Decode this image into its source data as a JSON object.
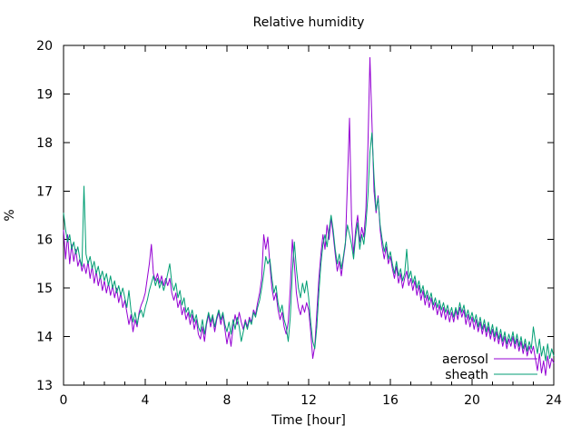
{
  "window": {
    "background": "#ffffff"
  },
  "colors": {
    "axis": "#000000",
    "text": "#000000",
    "aerosol": "#9400d3",
    "sheath": "#009e73"
  },
  "chart_data": {
    "type": "line",
    "title": "Relative humidity",
    "xlabel": "Time [hour]",
    "ylabel": "%",
    "xlim": [
      0,
      24
    ],
    "ylim": [
      13,
      20
    ],
    "x_major_ticks": [
      0,
      4,
      8,
      12,
      16,
      20,
      24
    ],
    "x_minor_ticks": [
      1,
      2,
      3,
      5,
      6,
      7,
      9,
      10,
      11,
      13,
      14,
      15,
      17,
      18,
      19,
      21,
      22,
      23
    ],
    "y_major_ticks": [
      13,
      14,
      15,
      16,
      17,
      18,
      19,
      20
    ],
    "grid": false,
    "legend_position": "bottom-right",
    "x_start": 0,
    "x_step": 0.1,
    "series": [
      {
        "name": "aerosol",
        "color": "#9400d3",
        "values": [
          16.2,
          15.6,
          16.1,
          15.5,
          15.9,
          15.55,
          15.8,
          15.45,
          15.6,
          15.35,
          15.5,
          15.3,
          15.55,
          15.2,
          15.45,
          15.1,
          15.35,
          15.05,
          15.25,
          14.95,
          15.15,
          14.9,
          15.1,
          14.85,
          15.05,
          14.8,
          15.0,
          14.7,
          14.9,
          14.6,
          14.75,
          14.5,
          14.25,
          14.45,
          14.1,
          14.35,
          14.2,
          14.5,
          14.65,
          14.75,
          14.9,
          15.2,
          15.5,
          15.9,
          15.3,
          15.15,
          15.3,
          15.1,
          15.25,
          15.05,
          15.2,
          15.05,
          15.2,
          14.9,
          14.75,
          14.9,
          14.6,
          14.75,
          14.45,
          14.6,
          14.35,
          14.5,
          14.25,
          14.45,
          14.15,
          14.35,
          14.05,
          13.95,
          14.2,
          13.9,
          14.25,
          14.45,
          14.2,
          14.4,
          14.1,
          14.35,
          14.5,
          14.25,
          14.45,
          14.15,
          13.85,
          14.1,
          13.8,
          14.2,
          14.45,
          14.25,
          14.5,
          14.3,
          14.15,
          14.35,
          14.2,
          14.4,
          14.3,
          14.55,
          14.45,
          14.7,
          14.9,
          15.2,
          16.1,
          15.8,
          16.05,
          15.5,
          15.0,
          14.75,
          14.9,
          14.55,
          14.35,
          14.5,
          14.2,
          14.05,
          14.3,
          15.0,
          16.0,
          15.5,
          14.9,
          14.6,
          14.45,
          14.65,
          14.5,
          14.7,
          14.55,
          14.1,
          13.55,
          13.8,
          14.5,
          15.2,
          15.7,
          16.1,
          15.8,
          16.3,
          16.0,
          16.45,
          16.1,
          15.7,
          15.35,
          15.55,
          15.25,
          15.6,
          15.9,
          17.2,
          18.5,
          16.4,
          15.7,
          16.2,
          16.5,
          15.95,
          16.25,
          16.05,
          16.6,
          17.9,
          19.75,
          18.4,
          17.0,
          16.55,
          16.9,
          16.2,
          15.85,
          15.6,
          15.85,
          15.5,
          15.65,
          15.4,
          15.2,
          15.45,
          15.1,
          15.3,
          15.0,
          15.2,
          15.35,
          15.05,
          15.2,
          14.95,
          15.15,
          14.85,
          15.05,
          14.75,
          14.95,
          14.65,
          14.85,
          14.6,
          14.8,
          14.55,
          14.7,
          14.45,
          14.65,
          14.4,
          14.6,
          14.35,
          14.55,
          14.3,
          14.5,
          14.3,
          14.55,
          14.35,
          14.6,
          14.4,
          14.55,
          14.25,
          14.45,
          14.2,
          14.4,
          14.15,
          14.35,
          14.1,
          14.3,
          14.05,
          14.25,
          14.0,
          14.2,
          13.95,
          14.15,
          13.9,
          14.1,
          13.85,
          14.05,
          13.8,
          14.0,
          13.75,
          13.95,
          13.8,
          14.0,
          13.75,
          13.95,
          13.7,
          13.9,
          13.65,
          13.85,
          13.6,
          13.8,
          13.65,
          13.8,
          13.55,
          13.3,
          13.65,
          13.25,
          13.5,
          13.2,
          13.6,
          13.35,
          13.55,
          13.45
        ]
      },
      {
        "name": "sheath",
        "color": "#009e73",
        "values": [
          16.55,
          16.2,
          15.95,
          16.1,
          15.8,
          15.95,
          15.7,
          15.85,
          15.6,
          15.45,
          17.1,
          15.7,
          15.5,
          15.65,
          15.4,
          15.55,
          15.3,
          15.45,
          15.2,
          15.35,
          15.15,
          15.3,
          15.05,
          15.25,
          15.0,
          15.15,
          14.9,
          15.05,
          14.85,
          15.0,
          14.8,
          14.6,
          14.95,
          14.55,
          14.3,
          14.5,
          14.25,
          14.45,
          14.55,
          14.4,
          14.6,
          14.75,
          14.95,
          15.1,
          15.25,
          15.05,
          15.2,
          15.0,
          15.15,
          14.95,
          15.1,
          15.3,
          15.5,
          15.1,
          14.95,
          15.1,
          14.8,
          14.95,
          14.65,
          14.8,
          14.5,
          14.6,
          14.4,
          14.55,
          14.3,
          14.45,
          14.2,
          14.1,
          14.35,
          14.05,
          14.3,
          14.5,
          14.3,
          14.45,
          14.2,
          14.4,
          14.55,
          14.35,
          14.5,
          14.25,
          14.1,
          14.3,
          14.05,
          14.35,
          14.15,
          14.4,
          14.2,
          13.9,
          14.1,
          14.3,
          14.15,
          14.35,
          14.25,
          14.5,
          14.4,
          14.6,
          14.75,
          15.0,
          15.3,
          15.65,
          15.5,
          15.6,
          15.2,
          14.9,
          15.05,
          14.7,
          14.5,
          14.65,
          14.35,
          14.2,
          13.9,
          14.4,
          15.3,
          15.95,
          15.4,
          15.0,
          14.8,
          15.1,
          14.9,
          15.15,
          14.8,
          14.3,
          13.9,
          13.75,
          14.2,
          14.9,
          15.5,
          15.9,
          16.1,
          15.85,
          16.2,
          16.5,
          16.2,
          15.8,
          15.5,
          15.7,
          15.4,
          15.65,
          15.95,
          16.3,
          16.1,
          15.9,
          15.6,
          16.05,
          16.35,
          15.8,
          16.1,
          15.9,
          16.3,
          16.9,
          17.8,
          18.2,
          17.3,
          16.6,
          16.85,
          16.3,
          16.0,
          15.75,
          15.95,
          15.6,
          15.75,
          15.5,
          15.3,
          15.55,
          15.25,
          15.4,
          15.15,
          15.3,
          15.8,
          15.2,
          15.35,
          15.1,
          15.25,
          15.0,
          15.15,
          14.9,
          15.05,
          14.8,
          14.95,
          14.75,
          14.9,
          14.65,
          14.8,
          14.6,
          14.75,
          14.55,
          14.7,
          14.5,
          14.65,
          14.45,
          14.6,
          14.4,
          14.6,
          14.45,
          14.7,
          14.5,
          14.65,
          14.4,
          14.55,
          14.35,
          14.5,
          14.3,
          14.45,
          14.2,
          14.4,
          14.15,
          14.35,
          14.1,
          14.3,
          14.05,
          14.25,
          14.0,
          14.2,
          13.95,
          14.15,
          13.9,
          14.1,
          13.85,
          14.05,
          13.9,
          14.1,
          13.85,
          14.05,
          13.8,
          14.0,
          13.75,
          13.95,
          13.7,
          13.9,
          13.75,
          14.2,
          13.9,
          13.65,
          13.95,
          13.6,
          13.8,
          13.5,
          13.85,
          13.55,
          13.75,
          13.6
        ]
      }
    ]
  },
  "legend": {
    "items": [
      {
        "label": "aerosol"
      },
      {
        "label": "sheath"
      }
    ]
  }
}
